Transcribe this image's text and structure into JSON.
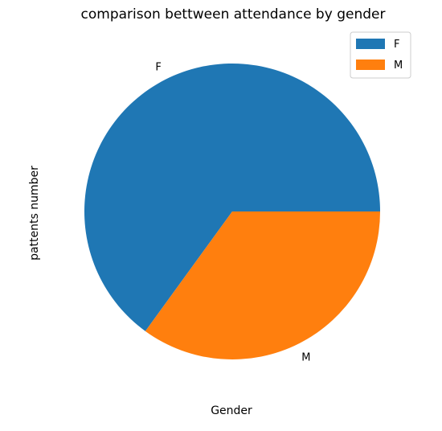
{
  "chart_data": {
    "type": "pie",
    "title": "comparison bettween attendance by gender",
    "xlabel": "Gender",
    "ylabel": "pattents number",
    "categories": [
      "F",
      "M"
    ],
    "values": [
      65,
      35
    ],
    "colors": [
      "#1f77b4",
      "#ff7f0e"
    ],
    "legend": {
      "placement": "top-right",
      "entries": [
        "F",
        "M"
      ]
    }
  }
}
